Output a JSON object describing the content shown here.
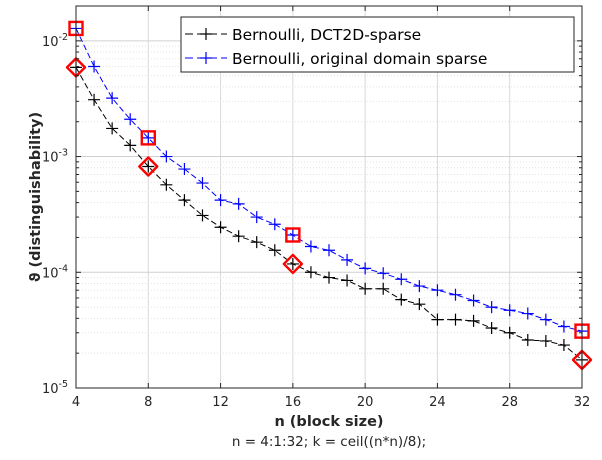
{
  "chart_data": {
    "type": "line",
    "title": "",
    "xlabel": "n (block size)",
    "ylabel": "ϑ (distinguishability)",
    "caption": "n = 4:1:32; k = ceil((n*n)/8);",
    "xlim": [
      4,
      32
    ],
    "ylim": [
      1e-05,
      0.02
    ],
    "yscale": "log",
    "grid": true,
    "legend_position": "top-right",
    "x_ticks": [
      "4",
      "8",
      "12",
      "16",
      "20",
      "24",
      "28",
      "32"
    ],
    "y_ticks": [
      {
        "value": 1e-05,
        "base": "10",
        "exp": "-5"
      },
      {
        "value": 0.0001,
        "base": "10",
        "exp": "-4"
      },
      {
        "value": 0.001,
        "base": "10",
        "exp": "-3"
      },
      {
        "value": 0.01,
        "base": "10",
        "exp": "-2"
      }
    ],
    "x": [
      4,
      5,
      6,
      7,
      8,
      9,
      10,
      11,
      12,
      13,
      14,
      15,
      16,
      17,
      18,
      19,
      20,
      21,
      22,
      23,
      24,
      25,
      26,
      27,
      28,
      29,
      30,
      31,
      32
    ],
    "series": [
      {
        "name": "Bernoulli, DCT2D-sparse",
        "color": "#000000",
        "marker": "plus",
        "highlight_marker": "diamond",
        "highlight_x": [
          4,
          8,
          16,
          32
        ],
        "values": [
          0.0059,
          0.0031,
          0.00175,
          0.00125,
          0.00082,
          0.00057,
          0.00042,
          0.00031,
          0.000245,
          0.000205,
          0.000182,
          0.000155,
          0.000118,
          0.0001,
          9e-05,
          8.5e-05,
          7.2e-05,
          7.2e-05,
          5.8e-05,
          5.3e-05,
          3.9e-05,
          3.9e-05,
          3.8e-05,
          3.3e-05,
          3e-05,
          2.6e-05,
          2.55e-05,
          2.35e-05,
          1.75e-05
        ]
      },
      {
        "name": "Bernoulli, original domain sparse",
        "color": "#0000ff",
        "marker": "plus",
        "highlight_marker": "square",
        "highlight_x": [
          4,
          8,
          16,
          32
        ],
        "values": [
          0.0128,
          0.006,
          0.0032,
          0.0021,
          0.00145,
          0.001,
          0.00078,
          0.00059,
          0.00042,
          0.00039,
          0.0003,
          0.00026,
          0.00021,
          0.000167,
          0.000155,
          0.000128,
          0.000108,
          9.8e-05,
          8.7e-05,
          7.6e-05,
          7e-05,
          6.4e-05,
          5.7e-05,
          5e-05,
          4.7e-05,
          4.4e-05,
          3.9e-05,
          3.4e-05,
          3.1e-05
        ]
      }
    ],
    "highlight_color": "#ff0000"
  }
}
